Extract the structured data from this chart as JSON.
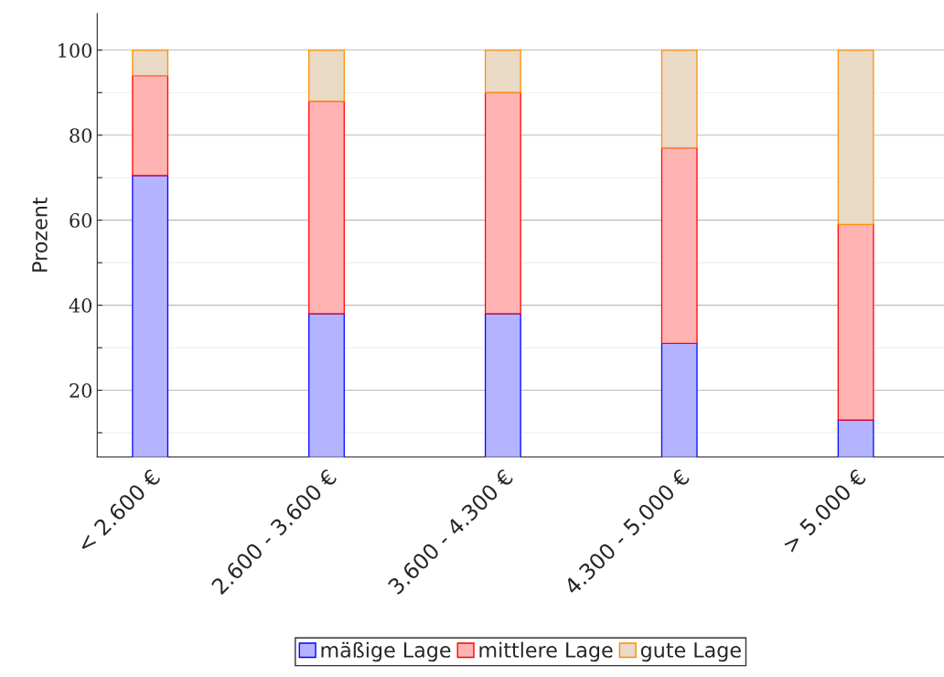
{
  "chart_data": {
    "type": "bar",
    "ylabel": "Prozent",
    "stacked": true,
    "categories": [
      "< 2.600 €",
      "2.600 - 3.600 €",
      "3.600 - 4.300 €",
      "4.300 - 5.000 €",
      "> 5.000 €"
    ],
    "series": [
      {
        "name": "mäßige Lage",
        "color": "#b3b3ff",
        "values": [
          70.5,
          38,
          38,
          31,
          13
        ]
      },
      {
        "name": "mittlere Lage",
        "color": "#ffb3b3",
        "values": [
          23.5,
          50,
          52,
          46,
          46
        ]
      },
      {
        "name": "gute Lage",
        "color": "#ead9c4",
        "values": [
          6,
          12,
          10,
          23,
          41
        ]
      }
    ],
    "ylim": [
      4.3,
      108.6
    ],
    "yticks": [
      {
        "value": 10,
        "label": null
      },
      20,
      {
        "value": 30,
        "label": null
      },
      40,
      {
        "value": 50,
        "label": null
      },
      60,
      {
        "value": 70,
        "label": null
      },
      80,
      {
        "value": 90,
        "label": null
      },
      100
    ],
    "grid": "y",
    "legend": "bottom"
  }
}
